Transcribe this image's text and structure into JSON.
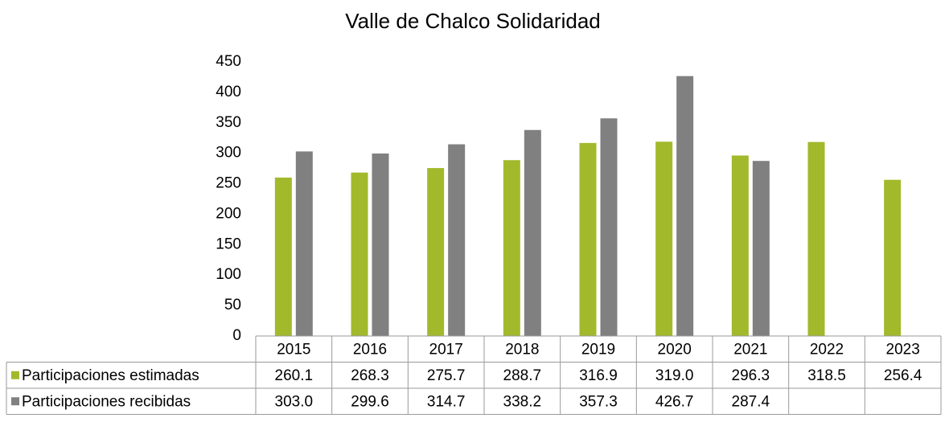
{
  "chart_data": {
    "type": "bar",
    "title": "Valle de Chalco Solidaridad",
    "categories": [
      "2015",
      "2016",
      "2017",
      "2018",
      "2019",
      "2020",
      "2021",
      "2022",
      "2023"
    ],
    "series": [
      {
        "name": "Participaciones estimadas",
        "color": "#a2b92b",
        "values": [
          260.1,
          268.3,
          275.7,
          288.7,
          316.9,
          319.0,
          296.3,
          318.5,
          256.4
        ],
        "value_labels": [
          "260.1",
          "268.3",
          "275.7",
          "288.7",
          "316.9",
          "319.0",
          "296.3",
          "318.5",
          "256.4"
        ]
      },
      {
        "name": "Participaciones recibidas",
        "color": "#808080",
        "values": [
          303.0,
          299.6,
          314.7,
          338.2,
          357.3,
          426.7,
          287.4,
          null,
          null
        ],
        "value_labels": [
          "303.0",
          "299.6",
          "314.7",
          "338.2",
          "357.3",
          "426.7",
          "287.4",
          null,
          null
        ]
      }
    ],
    "ylim": [
      0,
      450
    ],
    "yticks": [
      0,
      50,
      100,
      150,
      200,
      250,
      300,
      350,
      400,
      450
    ],
    "grid": false,
    "data_table": true
  }
}
